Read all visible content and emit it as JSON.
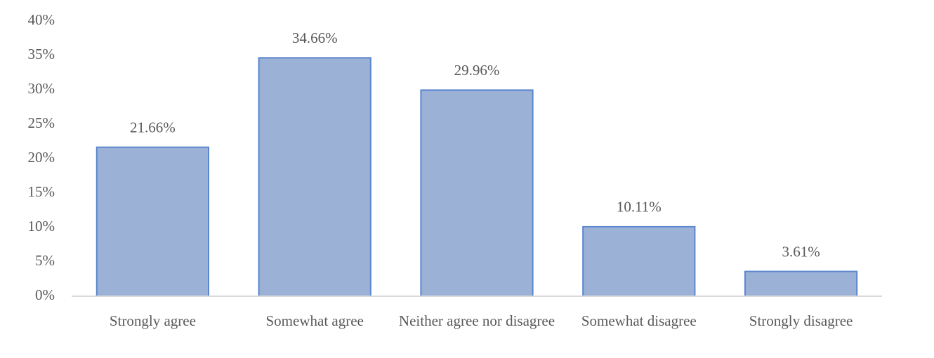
{
  "chart_data": {
    "type": "bar",
    "categories": [
      "Strongly agree",
      "Somewhat agree",
      "Neither agree nor disagree",
      "Somewhat disagree",
      "Strongly disagree"
    ],
    "values": [
      21.66,
      34.66,
      29.96,
      10.11,
      3.61
    ],
    "value_labels": [
      "21.66%",
      "34.66%",
      "29.96%",
      "10.11%",
      "3.61%"
    ],
    "color": "#9bb1d6",
    "ylim": [
      0,
      40
    ],
    "yticks": [
      {
        "value": 0,
        "label": "0%"
      },
      {
        "value": 5,
        "label": "5%"
      },
      {
        "value": 10,
        "label": "10%"
      },
      {
        "value": 15,
        "label": "15%"
      },
      {
        "value": 20,
        "label": "20%"
      },
      {
        "value": 25,
        "label": "25%"
      },
      {
        "value": 30,
        "label": "30%"
      },
      {
        "value": 35,
        "label": "35%"
      },
      {
        "value": 40,
        "label": "40%"
      }
    ],
    "grid": false
  }
}
